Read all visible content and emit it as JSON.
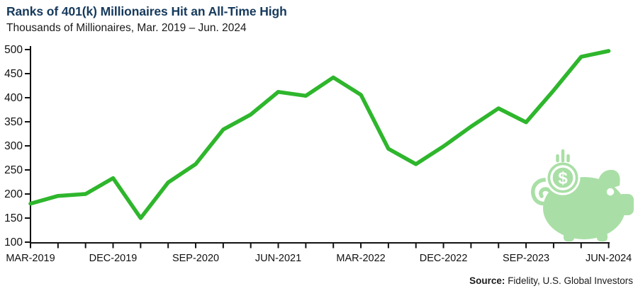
{
  "header": {
    "title": "Ranks of 401(k) Millionaires Hit an All-Time High",
    "subtitle": "Thousands of Millionaires, Mar. 2019 – Jun. 2024"
  },
  "source": {
    "label": "Source:",
    "text": "Fidelity, U.S. Global Investors"
  },
  "colors": {
    "title": "#163a5c",
    "line": "#2eb62c",
    "piggy": "#a9dfa6",
    "axis": "#111111"
  },
  "icons": {
    "piggy_bank": "piggy-bank-icon",
    "coin_symbol": "$"
  },
  "chart_data": {
    "type": "line",
    "title": "Ranks of 401(k) Millionaires Hit an All-Time High",
    "subtitle": "Thousands of Millionaires, Mar. 2019 – Jun. 2024",
    "ylabel": "Thousands of Millionaires",
    "ylim": [
      100,
      500
    ],
    "yticks": [
      100,
      150,
      200,
      250,
      300,
      350,
      400,
      450,
      500
    ],
    "categories": [
      "Mar-2019",
      "Jun-2019",
      "Sep-2019",
      "Dec-2019",
      "Mar-2020",
      "Jun-2020",
      "Sep-2020",
      "Dec-2020",
      "Mar-2021",
      "Jun-2021",
      "Sep-2021",
      "Dec-2021",
      "Mar-2022",
      "Jun-2022",
      "Sep-2022",
      "Dec-2022",
      "Mar-2023",
      "Jun-2023",
      "Sep-2023",
      "Dec-2023",
      "Mar-2024",
      "Jun-2024"
    ],
    "values": [
      180,
      196,
      200,
      233,
      150,
      224,
      262,
      334,
      365,
      412,
      404,
      442,
      406,
      294,
      262,
      299,
      340,
      378,
      349,
      415,
      485,
      497
    ],
    "x_tick_labels": [
      "MAR-2019",
      "DEC-2019",
      "SEP-2020",
      "JUN-2021",
      "MAR-2022",
      "DEC-2022",
      "SEP-2023",
      "JUN-2024"
    ],
    "x_label_every": 3,
    "line_color": "#2eb62c",
    "grid": false,
    "legend": false
  }
}
